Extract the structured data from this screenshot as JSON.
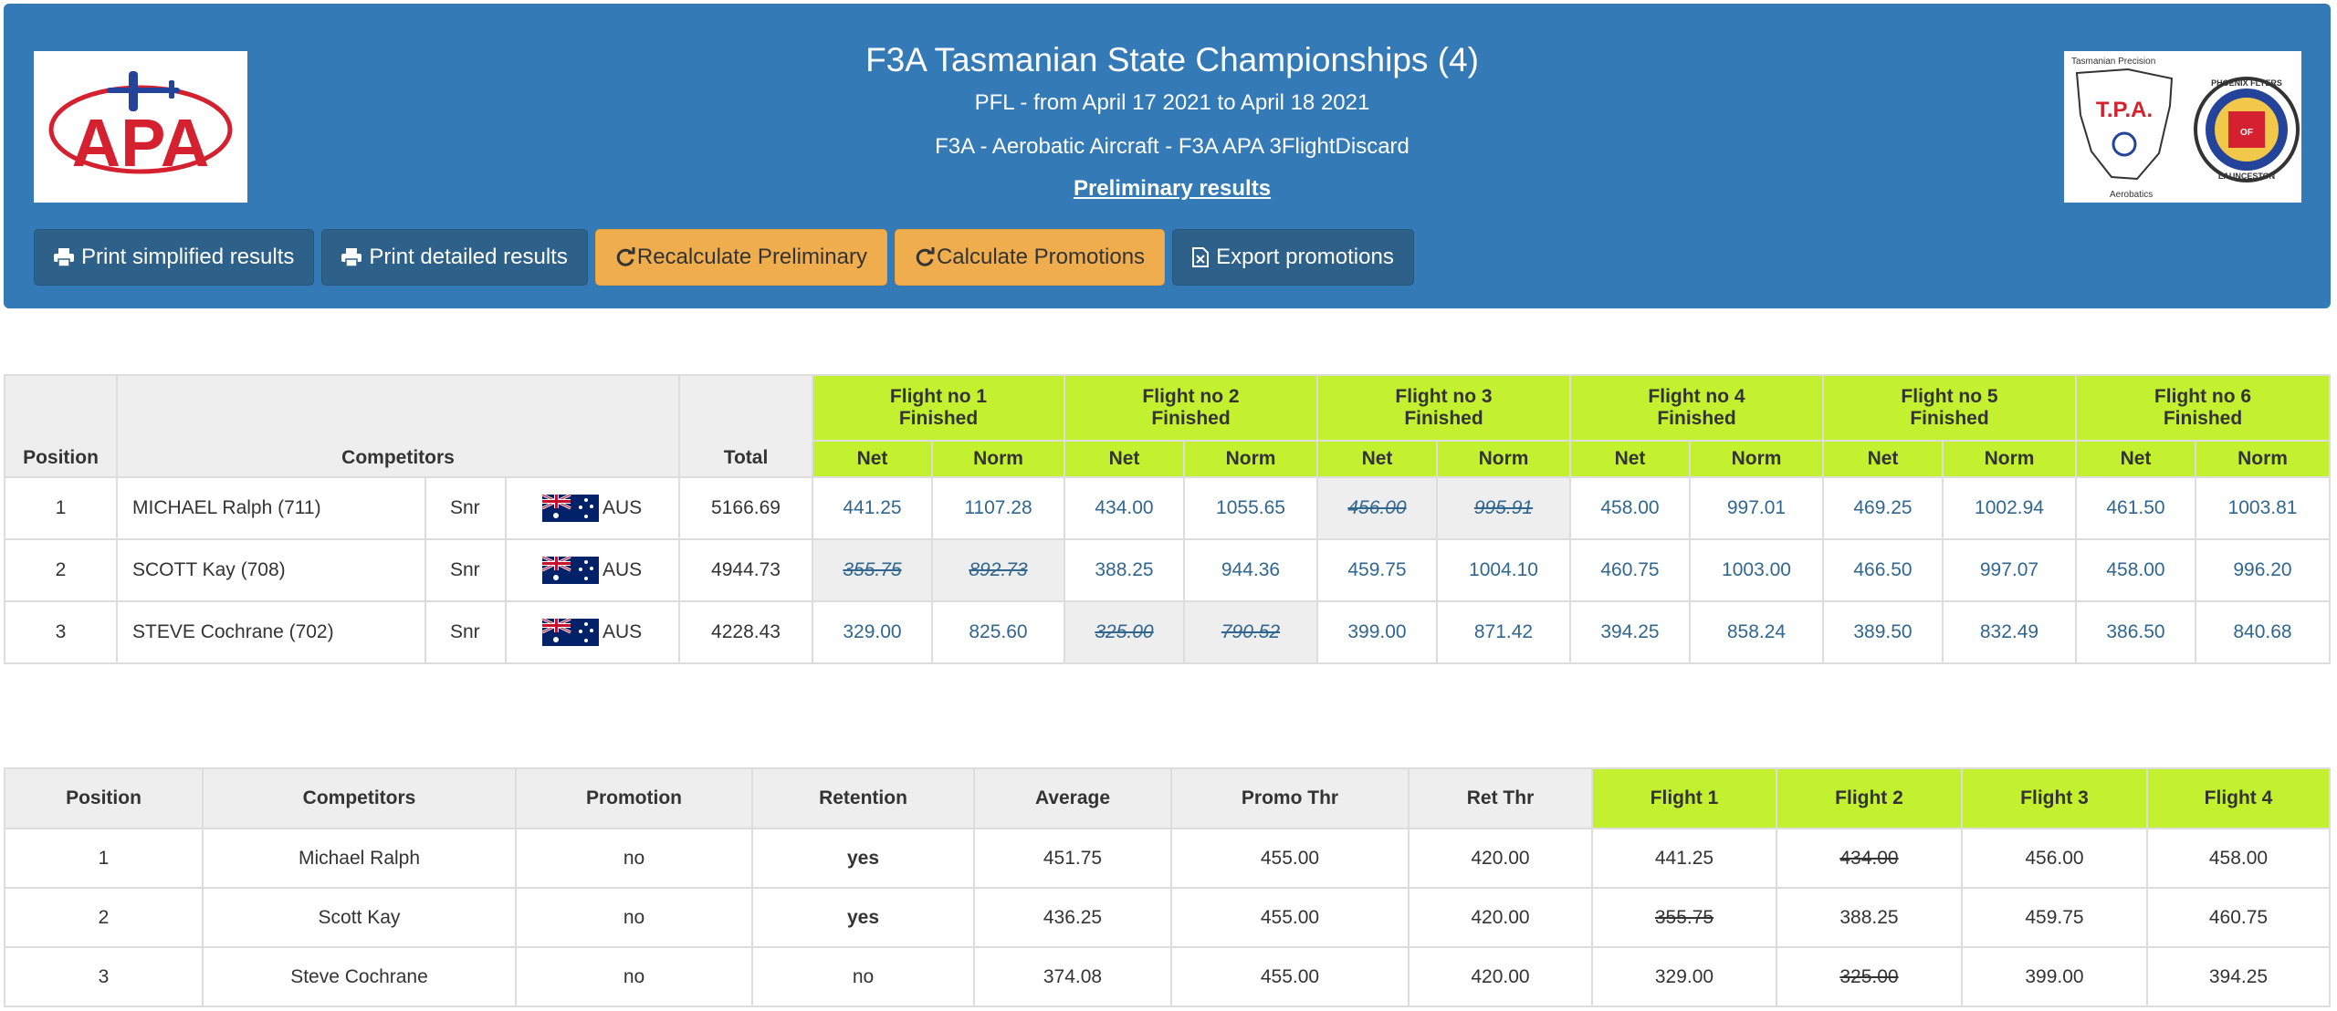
{
  "header": {
    "title": "F3A Tasmanian State Championships (4)",
    "subtitle": "PFL - from April 17 2021 to April 18 2021",
    "class_line": "F3A - Aerobatic Aircraft - F3A APA 3FlightDiscard",
    "preliminary_link": "Preliminary results",
    "logo_left_text": "APA",
    "logo_right": {
      "tpa_top": "Tasmanian Precision",
      "tpa_mid": "T.P.A.",
      "tpa_bottom": "Aerobatics",
      "club_top": "PHOENIX FLYERS",
      "club_mid": "OF",
      "club_bottom": "LAUNCESTON"
    }
  },
  "toolbar": {
    "print_simplified": "Print simplified results",
    "print_detailed": "Print detailed results",
    "recalculate": "Recalculate Preliminary",
    "calculate_promotions": "Calculate Promotions",
    "export_promotions": "Export promotions"
  },
  "results": {
    "headers": {
      "position": "Position",
      "competitors": "Competitors",
      "total": "Total",
      "net": "Net",
      "norm": "Norm"
    },
    "flights": [
      {
        "name": "Flight no 1",
        "status": "Finished"
      },
      {
        "name": "Flight no 2",
        "status": "Finished"
      },
      {
        "name": "Flight no 3",
        "status": "Finished"
      },
      {
        "name": "Flight no 4",
        "status": "Finished"
      },
      {
        "name": "Flight no 5",
        "status": "Finished"
      },
      {
        "name": "Flight no 6",
        "status": "Finished"
      }
    ],
    "rows": [
      {
        "position": "1",
        "name": "MICHAEL Ralph (711)",
        "category": "Snr",
        "country": "AUS",
        "total": "5166.69",
        "scores": [
          [
            "441.25",
            "1107.28",
            false
          ],
          [
            "434.00",
            "1055.65",
            false
          ],
          [
            "456.00",
            "995.91",
            true
          ],
          [
            "458.00",
            "997.01",
            false
          ],
          [
            "469.25",
            "1002.94",
            false
          ],
          [
            "461.50",
            "1003.81",
            false
          ]
        ]
      },
      {
        "position": "2",
        "name": "SCOTT Kay (708)",
        "category": "Snr",
        "country": "AUS",
        "total": "4944.73",
        "scores": [
          [
            "355.75",
            "892.73",
            true
          ],
          [
            "388.25",
            "944.36",
            false
          ],
          [
            "459.75",
            "1004.10",
            false
          ],
          [
            "460.75",
            "1003.00",
            false
          ],
          [
            "466.50",
            "997.07",
            false
          ],
          [
            "458.00",
            "996.20",
            false
          ]
        ]
      },
      {
        "position": "3",
        "name": "STEVE Cochrane (702)",
        "category": "Snr",
        "country": "AUS",
        "total": "4228.43",
        "scores": [
          [
            "329.00",
            "825.60",
            false
          ],
          [
            "325.00",
            "790.52",
            true
          ],
          [
            "399.00",
            "871.42",
            false
          ],
          [
            "394.25",
            "858.24",
            false
          ],
          [
            "389.50",
            "832.49",
            false
          ],
          [
            "386.50",
            "840.68",
            false
          ]
        ]
      }
    ]
  },
  "promotions": {
    "headers": [
      "Position",
      "Competitors",
      "Promotion",
      "Retention",
      "Average",
      "Promo Thr",
      "Ret Thr"
    ],
    "flight_headers": [
      "Flight 1",
      "Flight 2",
      "Flight 3",
      "Flight 4"
    ],
    "rows": [
      {
        "position": "1",
        "name": "Michael Ralph",
        "promotion": "no",
        "retention": "yes",
        "average": "451.75",
        "promo_thr": "455.00",
        "ret_thr": "420.00",
        "flights": [
          [
            "441.25",
            false
          ],
          [
            "434.00",
            true
          ],
          [
            "456.00",
            false
          ],
          [
            "458.00",
            false
          ]
        ]
      },
      {
        "position": "2",
        "name": "Scott Kay",
        "promotion": "no",
        "retention": "yes",
        "average": "436.25",
        "promo_thr": "455.00",
        "ret_thr": "420.00",
        "flights": [
          [
            "355.75",
            true
          ],
          [
            "388.25",
            false
          ],
          [
            "459.75",
            false
          ],
          [
            "460.75",
            false
          ]
        ]
      },
      {
        "position": "3",
        "name": "Steve Cochrane",
        "promotion": "no",
        "retention": "no",
        "average": "374.08",
        "promo_thr": "455.00",
        "ret_thr": "420.00",
        "flights": [
          [
            "329.00",
            false
          ],
          [
            "325.00",
            true
          ],
          [
            "399.00",
            false
          ],
          [
            "394.25",
            false
          ]
        ]
      }
    ]
  },
  "colors": {
    "header_bg": "#337ab7",
    "flight_header_bg": "#c4f12f",
    "warning_button": "#f0ad4e",
    "dark_button": "#2e6189",
    "score_text": "#31668f",
    "discard_red": "#c12e2a"
  }
}
